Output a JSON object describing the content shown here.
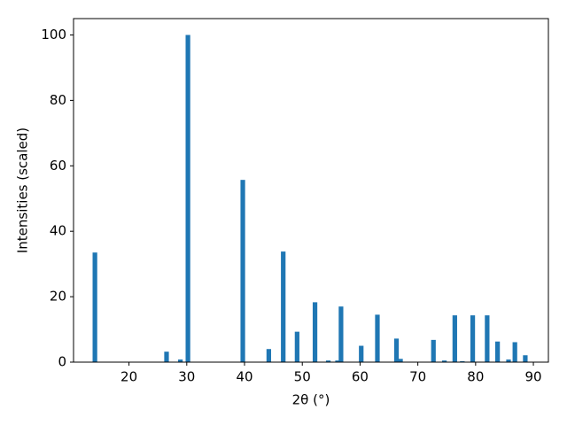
{
  "chart_data": {
    "type": "bar",
    "x_label": "2θ (°)",
    "y_label": "Intensities (scaled)",
    "x": [
      14.1,
      26.5,
      28.9,
      30.2,
      39.7,
      44.2,
      46.7,
      49.1,
      52.2,
      54.5,
      56.1,
      56.7,
      60.2,
      63.0,
      66.3,
      67.0,
      72.7,
      74.6,
      76.4,
      77.7,
      79.5,
      82.0,
      83.8,
      85.7,
      86.8,
      88.6
    ],
    "values": [
      33.5,
      3.2,
      0.8,
      100,
      55.7,
      4,
      33.8,
      9.3,
      18.3,
      0.5,
      0.5,
      17,
      5,
      14.5,
      7.2,
      1,
      6.8,
      0.5,
      14.3,
      0.3,
      14.3,
      14.3,
      6.3,
      0.8,
      6.1,
      2.1
    ],
    "color": "#1f77b4",
    "xlim": [
      10.4,
      92.6
    ],
    "xticks": [
      20,
      30,
      40,
      50,
      60,
      70,
      80,
      90
    ],
    "ylim": [
      0,
      105
    ],
    "yticks": [
      0,
      20,
      40,
      60,
      80,
      100
    ],
    "grid": false
  }
}
